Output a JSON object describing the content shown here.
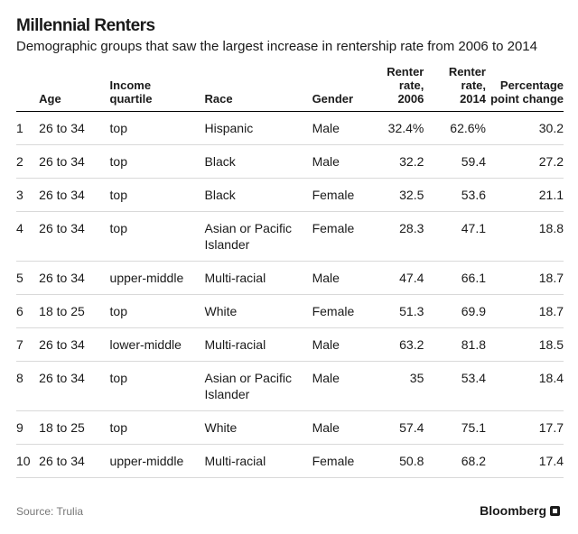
{
  "header": {
    "title": "Millennial Renters",
    "subtitle": "Demographic groups that saw the largest increase in rentership rate from 2006 to 2014"
  },
  "footer": {
    "source": "Source: Trulia",
    "brand": "Bloomberg"
  },
  "chart_data": {
    "type": "table",
    "title": "Millennial Renters",
    "subtitle": "Demographic groups that saw the largest increase in rentership rate from 2006 to 2014",
    "columns": [
      "",
      "Age",
      "Income quartile",
      "Race",
      "Gender",
      "Renter rate, 2006",
      "Renter rate, 2014",
      "Percentage point change"
    ],
    "rows": [
      [
        "1",
        "26 to 34",
        "top",
        "Hispanic",
        "Male",
        "32.4%",
        "62.6%",
        "30.2"
      ],
      [
        "2",
        "26 to 34",
        "top",
        "Black",
        "Male",
        "32.2",
        "59.4",
        "27.2"
      ],
      [
        "3",
        "26 to 34",
        "top",
        "Black",
        "Female",
        "32.5",
        "53.6",
        "21.1"
      ],
      [
        "4",
        "26 to 34",
        "top",
        "Asian or Pacific Islander",
        "Female",
        "28.3",
        "47.1",
        "18.8"
      ],
      [
        "5",
        "26 to 34",
        "upper-middle",
        "Multi-racial",
        "Male",
        "47.4",
        "66.1",
        "18.7"
      ],
      [
        "6",
        "18 to 25",
        "top",
        "White",
        "Female",
        "51.3",
        "69.9",
        "18.7"
      ],
      [
        "7",
        "26 to 34",
        "lower-middle",
        "Multi-racial",
        "Male",
        "63.2",
        "81.8",
        "18.5"
      ],
      [
        "8",
        "26 to 34",
        "top",
        "Asian or Pacific Islander",
        "Male",
        "35",
        "53.4",
        "18.4"
      ],
      [
        "9",
        "18 to 25",
        "top",
        "White",
        "Male",
        "57.4",
        "75.1",
        "17.7"
      ],
      [
        "10",
        "26 to 34",
        "upper-middle",
        "Multi-racial",
        "Female",
        "50.8",
        "68.2",
        "17.4"
      ]
    ]
  }
}
